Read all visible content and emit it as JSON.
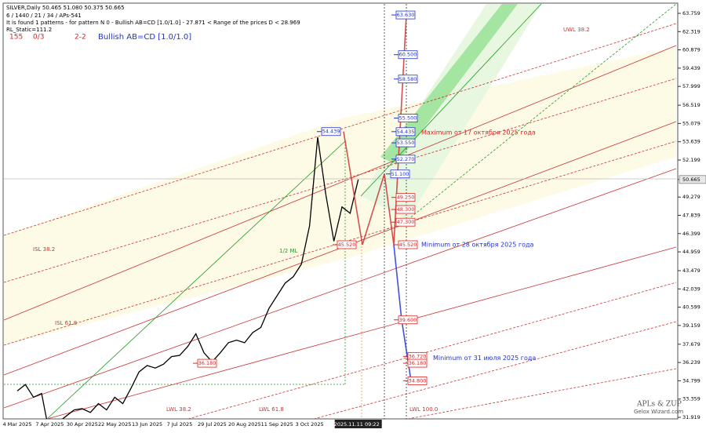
{
  "chart_data": {
    "type": "line",
    "title": "SILVER,Daily  50.465 51.080 50.375 50.665",
    "info_lines": [
      "6 / 1440 / 21 / 34 / APs-541",
      "It is found 1 patterns  -  for pattern N 0 - Bullish AB=CD [1.0/1.0] - 27.871 < Range of the prices D < 28.969",
      "RL_Static=111.2"
    ],
    "counters": [
      "155",
      "0/3",
      "2-2"
    ],
    "pattern_name": "Bullish AB=CD [1.0/1.0]",
    "categories": [
      "4 Mar 2025",
      null,
      null,
      null,
      "7 Apr 2025",
      null,
      null,
      null,
      "30 Apr 2025",
      null,
      null,
      null,
      "22 May 2025",
      null,
      null,
      null,
      "13 Jun 2025",
      null,
      null,
      null,
      "7 Jul 2025",
      null,
      null,
      null,
      "29 Jul 2025",
      null,
      null,
      null,
      "20 Aug 2025",
      null,
      null,
      null,
      "11 Sep 2025",
      null,
      null,
      null,
      "3 Oct 2025",
      null,
      null,
      null,
      null,
      null,
      "2025.11.11 09:22"
    ],
    "values": [
      34.0,
      34.5,
      33.5,
      33.8,
      30.5,
      31.5,
      32.0,
      32.5,
      32.6,
      32.3,
      33.0,
      32.5,
      33.5,
      33.0,
      34.2,
      35.5,
      36.0,
      35.8,
      36.1,
      36.7,
      36.8,
      37.5,
      38.5,
      37.0,
      36.3,
      37.0,
      37.8,
      38.0,
      37.8,
      38.6,
      39.0,
      40.5,
      41.5,
      42.5,
      43.0,
      44.0,
      47.0,
      54.0,
      49.5,
      45.8,
      48.5,
      48.0,
      50.665
    ],
    "color": "#000000",
    "ylim": [
      31.919,
      63.759
    ],
    "yticks": [
      31.919,
      33.359,
      34.799,
      36.239,
      37.679,
      39.159,
      40.599,
      42.039,
      43.479,
      44.959,
      46.399,
      47.839,
      49.279,
      50.665,
      52.199,
      53.639,
      55.079,
      56.519,
      57.999,
      59.439,
      60.879,
      62.319,
      63.759
    ],
    "grid": false,
    "right_levels": [
      {
        "value": 63.63,
        "label": "63.630",
        "color": "#2233cc"
      },
      {
        "value": 60.5,
        "label": "60.500",
        "color": "#2233cc"
      },
      {
        "value": 58.58,
        "label": "58.580",
        "color": "#2233cc"
      },
      {
        "value": 55.5,
        "label": "55.500",
        "color": "#2233cc"
      },
      {
        "value": 54.435,
        "label": "54.435",
        "color": "#2233cc"
      },
      {
        "value": 53.55,
        "label": "53.550",
        "color": "#2233cc"
      },
      {
        "value": 52.27,
        "label": "52.270",
        "color": "#2233cc"
      },
      {
        "value": 51.1,
        "label": "51.100",
        "color": "#2233cc"
      },
      {
        "value": 49.25,
        "label": "49.250",
        "color": "#dd2222"
      },
      {
        "value": 48.3,
        "label": "48.300",
        "color": "#dd2222"
      },
      {
        "value": 47.3,
        "label": "47.300",
        "color": "#dd2222"
      },
      {
        "value": 45.52,
        "label": "45.520",
        "color": "#dd2222"
      },
      {
        "value": 39.6,
        "label": "39.600",
        "color": "#dd2222"
      },
      {
        "value": 36.72,
        "label": "36.720",
        "color": "#dd2222"
      },
      {
        "value": 36.18,
        "label": "36.180",
        "color": "#dd2222"
      },
      {
        "value": 34.8,
        "label": "34.800",
        "color": "#dd2222"
      }
    ],
    "left_levels": [
      {
        "value": 54.439,
        "label": "54.439",
        "color": "#2233cc"
      },
      {
        "value": 45.52,
        "label": "45.520",
        "color": "#dd2222"
      },
      {
        "value": 36.18,
        "label": "36.180",
        "color": "#dd2222"
      }
    ],
    "notes": [
      {
        "text": "Maximum от 17 октября 2025 года",
        "color": "#dd2222"
      },
      {
        "text": "Minimum от 28 октября 2025 года",
        "color": "#2233cc"
      },
      {
        "text": "Minimum от 31 июля 2025 года",
        "color": "#2233cc"
      }
    ],
    "line_labels": [
      "UWL 38.2",
      "ISL 38.2",
      "ISL 61.8",
      "1/2 ML",
      "LWL 38.2",
      "LWL 61.8",
      "LWL 100.0"
    ],
    "watermark": [
      "APLs & ZUP",
      "Gelox Wizard.com"
    ]
  }
}
